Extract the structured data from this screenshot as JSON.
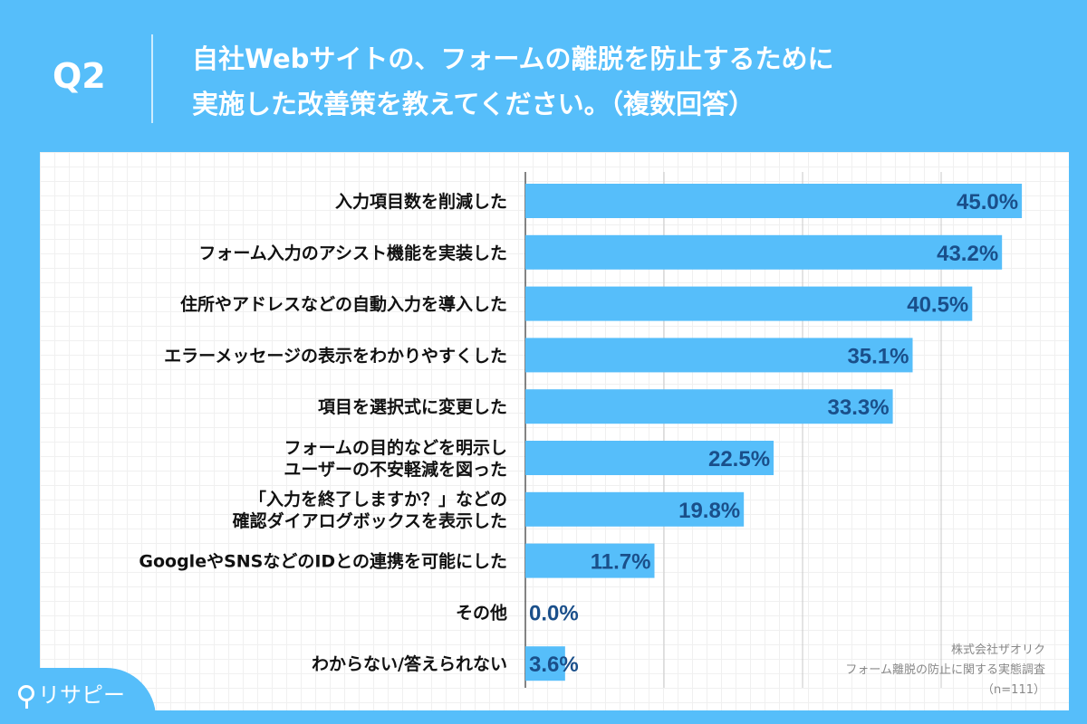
{
  "header": {
    "question_number": "Q2",
    "title_line1": "自社Webサイトの、フォームの離脱を防止するために",
    "title_line2": "実施した改善策を教えてください。（複数回答）"
  },
  "logo": {
    "text": "リサピー"
  },
  "source": {
    "company": "株式会社ザオリク",
    "survey": "フォーム離脱の防止に関する実態調査",
    "sample": "（n=111）"
  },
  "colors": {
    "background": "#56befa",
    "bar": "#56befa",
    "value_label": "#1a4f8a"
  },
  "chart_data": {
    "type": "bar",
    "orientation": "horizontal",
    "categories": [
      [
        "入力項目数を削減した"
      ],
      [
        "フォーム入力のアシスト機能を実装した"
      ],
      [
        "住所やアドレスなどの自動入力を導入した"
      ],
      [
        "エラーメッセージの表示をわかりやすくした"
      ],
      [
        "項目を選択式に変更した"
      ],
      [
        "フォームの目的などを明示し",
        "ユーザーの不安軽減を図った"
      ],
      [
        "「入力を終了しますか？」などの",
        "確認ダイアログボックスを表示した"
      ],
      [
        "GoogleやSNSなどのIDとの連携を可能にした"
      ],
      [
        "その他"
      ],
      [
        "わからない/答えられない"
      ]
    ],
    "values": [
      45.0,
      43.2,
      40.5,
      35.1,
      33.3,
      22.5,
      19.8,
      11.7,
      0.0,
      3.6
    ],
    "value_labels": [
      "45.0%",
      "43.2%",
      "40.5%",
      "35.1%",
      "33.3%",
      "22.5%",
      "19.8%",
      "11.7%",
      "0.0%",
      "3.6%"
    ],
    "unit": "%",
    "grid": true
  }
}
